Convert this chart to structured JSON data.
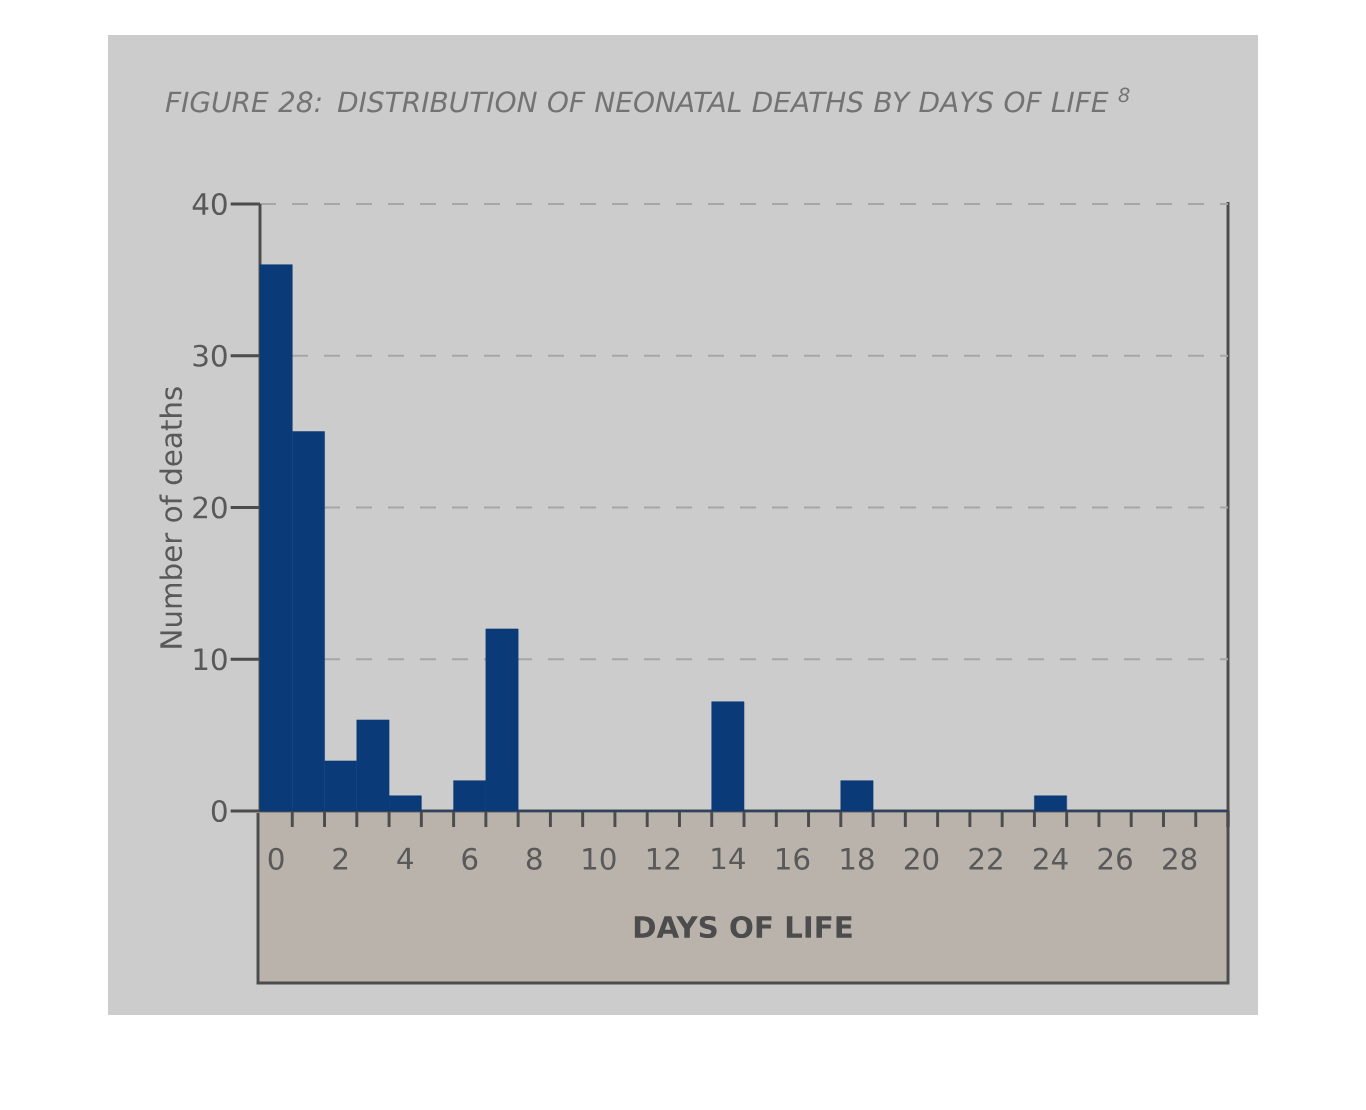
{
  "chart_data": {
    "type": "bar",
    "title": "FIGURE 28: DISTRIBUTION OF NEONATAL DEATHS BY DAYS OF LIFE $^{8}$",
    "xlabel": "DAYS OF LIFE",
    "ylabel": "Number of deaths",
    "categories": [
      "0",
      null,
      "2",
      null,
      "4",
      null,
      "6",
      null,
      "8",
      null,
      "10",
      null,
      "12",
      null,
      "14",
      null,
      "16",
      null,
      "18",
      null,
      "20",
      null,
      "22",
      null,
      "24",
      null,
      "26",
      null,
      "28",
      null
    ],
    "values": [
      36,
      25,
      3.3,
      6,
      1,
      0,
      2,
      12,
      0,
      0,
      0,
      0,
      0,
      0,
      7.2,
      0,
      0,
      0,
      2,
      0,
      0,
      0,
      0,
      0,
      1,
      0,
      0,
      0,
      0,
      0
    ],
    "color": "#0b3a78",
    "ylim": [
      0,
      40
    ],
    "yticks": [
      0,
      10,
      20,
      30,
      40
    ],
    "grid": "y"
  }
}
